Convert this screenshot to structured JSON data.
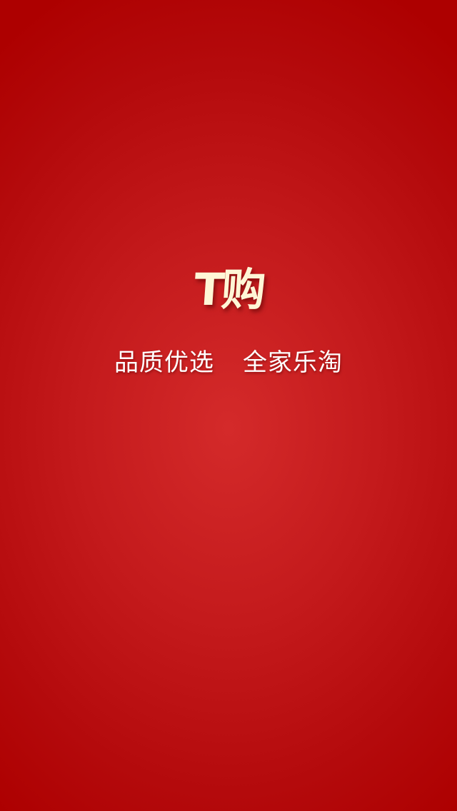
{
  "splash": {
    "logo_text": "T购",
    "slogan_left": "品质优选",
    "slogan_right": "全家乐淘"
  },
  "colors": {
    "background_center": "#d42a2a",
    "background_edge": "#ad0000",
    "logo": "#fff6d6",
    "slogan": "#ffffff"
  }
}
